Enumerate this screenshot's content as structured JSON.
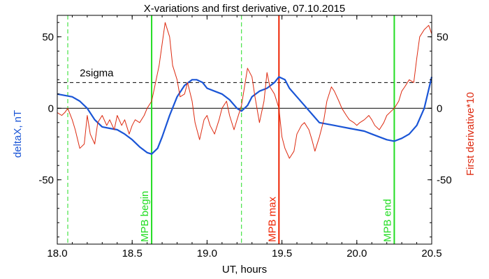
{
  "chart_data": {
    "type": "line",
    "title": "X-variations and first derivative, 07.10.2015",
    "xlabel": "UT, hours",
    "ylabel_left": "deltaX, nT",
    "ylabel_right": "First derivative*10",
    "xlim": [
      18.0,
      20.5
    ],
    "ylim": [
      -95,
      65
    ],
    "x_ticks": [
      18.0,
      18.5,
      19.0,
      19.5,
      20.0,
      20.5
    ],
    "x_tick_labels": [
      "18.0",
      "18.5",
      "19.0",
      "19.5",
      "20.0",
      "20.5"
    ],
    "y_ticks_left": [
      50,
      0,
      -50
    ],
    "y_tick_labels_left": [
      "50",
      "0",
      "-50"
    ],
    "y_ticks_right": [
      50,
      0,
      -50
    ],
    "y_tick_labels_right": [
      "50",
      "0",
      "-50"
    ],
    "zero_line": 0,
    "sigma_line": {
      "y": 18,
      "label": "2sigma"
    },
    "vertical_markers": [
      {
        "x": 18.07,
        "style": "dashed",
        "color": "#22dd22",
        "label": ""
      },
      {
        "x": 18.63,
        "style": "solid",
        "color": "#22dd22",
        "label": "MPB begin"
      },
      {
        "x": 19.23,
        "style": "dashed",
        "color": "#22dd22",
        "label": ""
      },
      {
        "x": 19.48,
        "style": "solid",
        "color": "#ee2200",
        "label": "MPB max"
      },
      {
        "x": 20.25,
        "style": "solid",
        "color": "#22dd22",
        "label": "MPB end"
      }
    ],
    "series": [
      {
        "axis": "left",
        "color": "#1a55d6",
        "x": [
          18.0,
          18.05,
          18.1,
          18.15,
          18.2,
          18.25,
          18.3,
          18.35,
          18.4,
          18.45,
          18.5,
          18.55,
          18.6,
          18.63,
          18.67,
          18.7,
          18.75,
          18.8,
          18.85,
          18.9,
          18.93,
          18.97,
          19.0,
          19.05,
          19.1,
          19.15,
          19.2,
          19.23,
          19.27,
          19.3,
          19.35,
          19.4,
          19.45,
          19.48,
          19.52,
          19.55,
          19.6,
          19.65,
          19.7,
          19.75,
          19.8,
          19.85,
          19.9,
          19.95,
          20.0,
          20.05,
          20.1,
          20.15,
          20.2,
          20.25,
          20.3,
          20.35,
          20.4,
          20.45,
          20.5
        ],
        "y": [
          10,
          9,
          8,
          5,
          0,
          -8,
          -13,
          -14,
          -15,
          -18,
          -22,
          -27,
          -31,
          -32,
          -28,
          -20,
          -5,
          8,
          16,
          20,
          20,
          18,
          14,
          12,
          10,
          6,
          0,
          -2,
          2,
          8,
          12,
          14,
          18,
          22,
          20,
          14,
          8,
          2,
          -4,
          -10,
          -11,
          -12,
          -13,
          -14,
          -15,
          -16,
          -18,
          -20,
          -22,
          -23,
          -21,
          -18,
          -12,
          0,
          22
        ]
      },
      {
        "axis": "right",
        "color": "#dd2a10",
        "x": [
          18.0,
          18.03,
          18.05,
          18.07,
          18.1,
          18.12,
          18.15,
          18.18,
          18.2,
          18.22,
          18.25,
          18.27,
          18.3,
          18.33,
          18.35,
          18.38,
          18.4,
          18.43,
          18.45,
          18.48,
          18.5,
          18.52,
          18.55,
          18.58,
          18.6,
          18.63,
          18.65,
          18.68,
          18.7,
          18.72,
          18.75,
          18.77,
          18.8,
          18.82,
          18.85,
          18.87,
          18.9,
          18.92,
          18.95,
          18.98,
          19.0,
          19.02,
          19.05,
          19.08,
          19.1,
          19.13,
          19.15,
          19.18,
          19.2,
          19.23,
          19.25,
          19.27,
          19.3,
          19.32,
          19.35,
          19.38,
          19.4,
          19.42,
          19.45,
          19.48,
          19.5,
          19.52,
          19.55,
          19.58,
          19.6,
          19.63,
          19.65,
          19.68,
          19.7,
          19.72,
          19.75,
          19.78,
          19.8,
          19.83,
          19.85,
          19.88,
          19.9,
          19.93,
          19.95,
          19.98,
          20.0,
          20.02,
          20.05,
          20.08,
          20.1,
          20.12,
          20.15,
          20.18,
          20.2,
          20.23,
          20.25,
          20.28,
          20.3,
          20.32,
          20.35,
          20.38,
          20.4,
          20.42,
          20.45,
          20.48,
          20.5
        ],
        "y": [
          -3,
          -5,
          -3,
          0,
          -8,
          -15,
          -28,
          -25,
          -5,
          -18,
          -25,
          -10,
          -5,
          -12,
          -8,
          -15,
          -5,
          -12,
          -8,
          -18,
          -12,
          -8,
          -10,
          -5,
          0,
          5,
          15,
          30,
          45,
          60,
          50,
          30,
          20,
          8,
          10,
          18,
          5,
          -10,
          -22,
          -8,
          -5,
          -12,
          -18,
          -8,
          0,
          5,
          -5,
          -15,
          -8,
          2,
          15,
          28,
          22,
          8,
          -10,
          5,
          25,
          15,
          10,
          0,
          -20,
          -28,
          -35,
          -30,
          -18,
          -12,
          -10,
          -15,
          -22,
          -30,
          -20,
          -8,
          5,
          15,
          12,
          5,
          0,
          -5,
          -8,
          -10,
          -12,
          -10,
          -8,
          -5,
          -8,
          -12,
          -15,
          -10,
          -5,
          -2,
          0,
          5,
          12,
          15,
          20,
          18,
          35,
          50,
          55,
          58,
          52
        ]
      }
    ]
  }
}
